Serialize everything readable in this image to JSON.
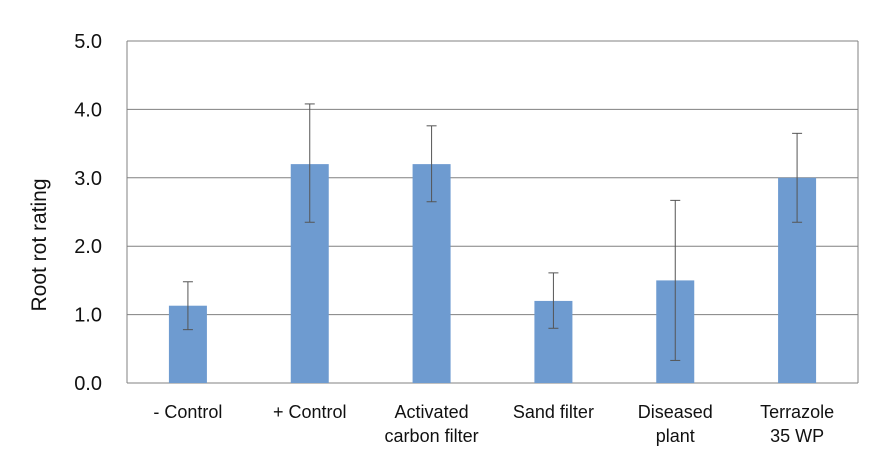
{
  "chart_data": {
    "type": "bar",
    "title": "",
    "xlabel": "",
    "ylabel": "Root rot rating",
    "ylim": [
      0,
      5
    ],
    "yticks": [
      "0.0",
      "1.0",
      "2.0",
      "3.0",
      "4.0",
      "5.0"
    ],
    "grid": true,
    "categories": [
      [
        "- Control"
      ],
      [
        "+ Control"
      ],
      [
        "Activated",
        "carbon filter"
      ],
      [
        "Sand filter"
      ],
      [
        "Diseased",
        "plant"
      ],
      [
        "Terrazole",
        "35 WP"
      ]
    ],
    "values": [
      1.13,
      3.2,
      3.2,
      1.2,
      1.5,
      3.0
    ],
    "error_low": [
      0.78,
      2.35,
      2.65,
      0.8,
      0.33,
      2.35
    ],
    "error_high": [
      1.48,
      4.08,
      3.76,
      1.61,
      2.67,
      3.65
    ],
    "bar_color": "#6E9BD0",
    "grid_color": "#808080",
    "error_color": "#555555"
  }
}
